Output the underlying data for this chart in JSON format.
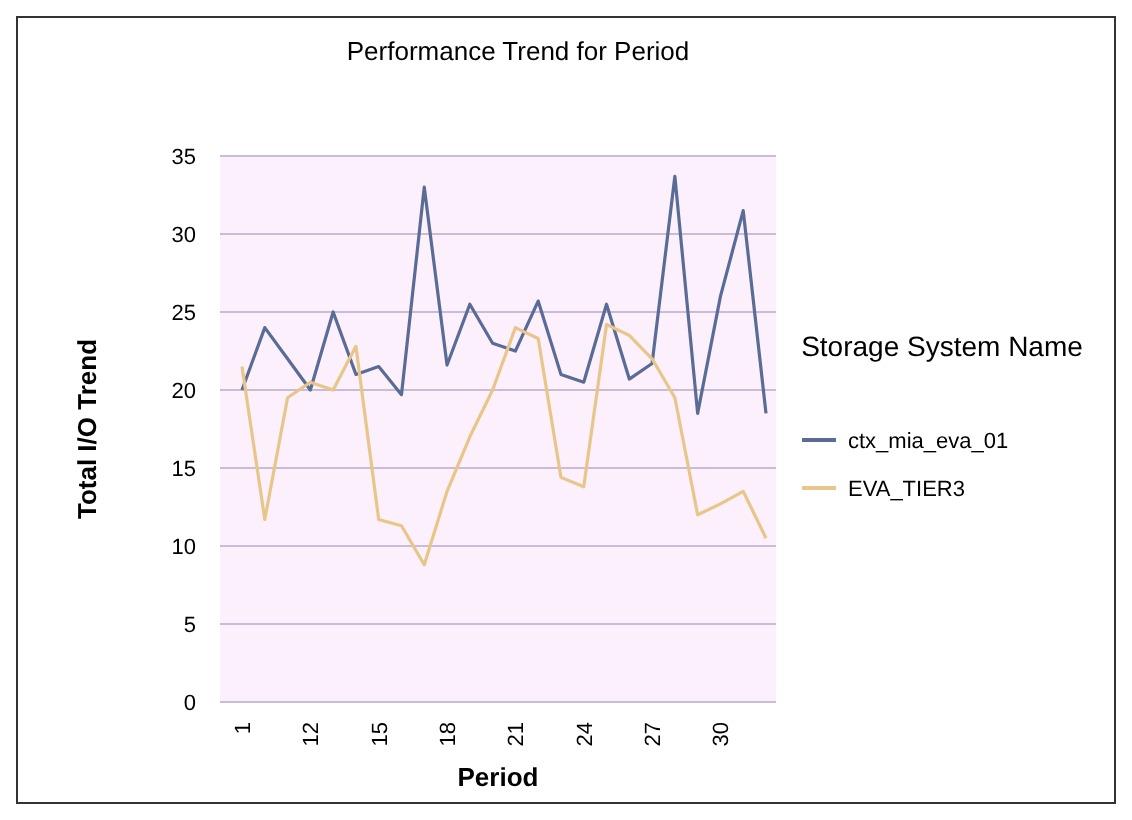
{
  "chart_data": {
    "type": "line",
    "title": "Performance Trend for Period",
    "xlabel": "Period",
    "ylabel": "Total I/O Trend",
    "legend_title": "Storage System Name",
    "categories": [
      "1",
      null,
      null,
      "12",
      null,
      null,
      "15",
      null,
      null,
      "18",
      null,
      null,
      "21",
      null,
      null,
      "24",
      null,
      null,
      "27",
      null,
      null,
      "30",
      null,
      null
    ],
    "series": [
      {
        "name": "ctx_mia_eva_01",
        "color": "#5a6c96",
        "values": [
          20,
          24,
          22,
          20,
          25,
          21,
          21.5,
          19.7,
          33,
          21.6,
          25.5,
          23,
          22.5,
          25.7,
          21,
          20.5,
          25.5,
          20.7,
          21.7,
          33.7,
          18.5,
          26,
          31.5,
          18.5
        ]
      },
      {
        "name": "EVA_TIER3",
        "color": "#e8c68a",
        "values": [
          21.5,
          11.7,
          19.5,
          20.5,
          20,
          22.8,
          11.7,
          11.3,
          8.8,
          13.5,
          17,
          20,
          24,
          23.3,
          14.4,
          13.8,
          24.2,
          23.5,
          22,
          19.5,
          12,
          12.7,
          13.5,
          10.5
        ]
      }
    ],
    "ylim": [
      0,
      35
    ],
    "yticks": [
      0,
      5,
      10,
      15,
      20,
      25,
      30,
      35
    ],
    "grid": "y",
    "legend": "right",
    "marker": "none",
    "line_style": "solid"
  }
}
